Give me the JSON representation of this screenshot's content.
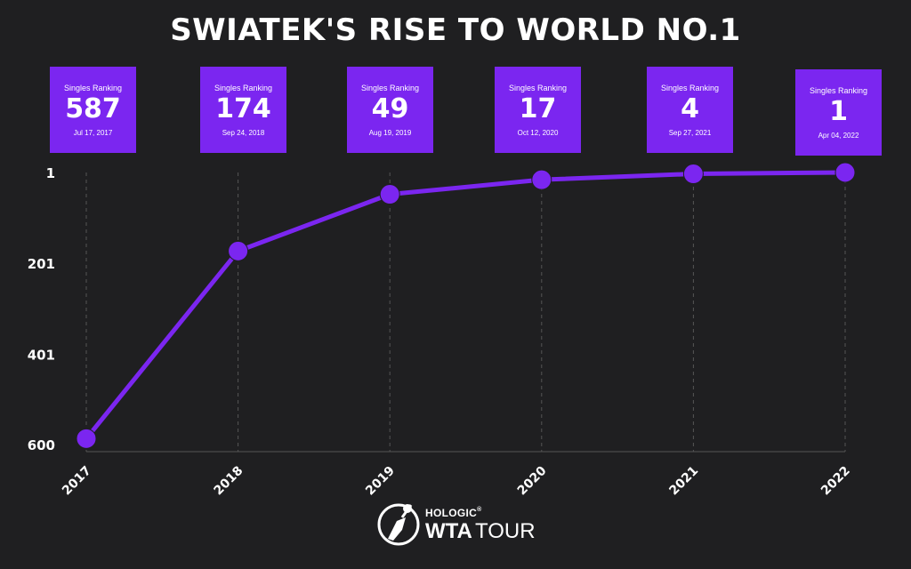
{
  "title": "SWIATEK'S RISE TO WORLD NO.1",
  "colors": {
    "accent": "#7b26f0",
    "background": "#1f1f21",
    "text": "#ffffff",
    "grid": "#555555"
  },
  "cards": [
    {
      "label": "Singles Ranking",
      "value": "587",
      "date": "Jul 17, 2017"
    },
    {
      "label": "Singles Ranking",
      "value": "174",
      "date": "Sep 24, 2018"
    },
    {
      "label": "Singles Ranking",
      "value": "49",
      "date": "Aug 19, 2019"
    },
    {
      "label": "Singles Ranking",
      "value": "17",
      "date": "Oct 12, 2020"
    },
    {
      "label": "Singles Ranking",
      "value": "4",
      "date": "Sep 27, 2021"
    },
    {
      "label": "Singles Ranking",
      "value": "1",
      "date": "Apr 04, 2022"
    }
  ],
  "chart_data": {
    "type": "line",
    "title": "SWIATEK'S RISE TO WORLD NO.1",
    "x": [
      "2017",
      "2018",
      "2019",
      "2020",
      "2021",
      "2022"
    ],
    "series": [
      {
        "values": [
          587,
          174,
          49,
          17,
          4,
          1
        ]
      }
    ],
    "yticks": [
      "1",
      "201",
      "401",
      "600"
    ],
    "ytick_values": [
      1,
      201,
      401,
      600
    ],
    "ylim": [
      1,
      600
    ],
    "y_inverted": true,
    "grid": "vertical dashed",
    "legend": "none"
  },
  "logo": {
    "brand": "HOLOGIC",
    "trademark": "®",
    "name_bold": "WTA",
    "name_light": "TOUR",
    "icon": "tennis-player-icon"
  }
}
